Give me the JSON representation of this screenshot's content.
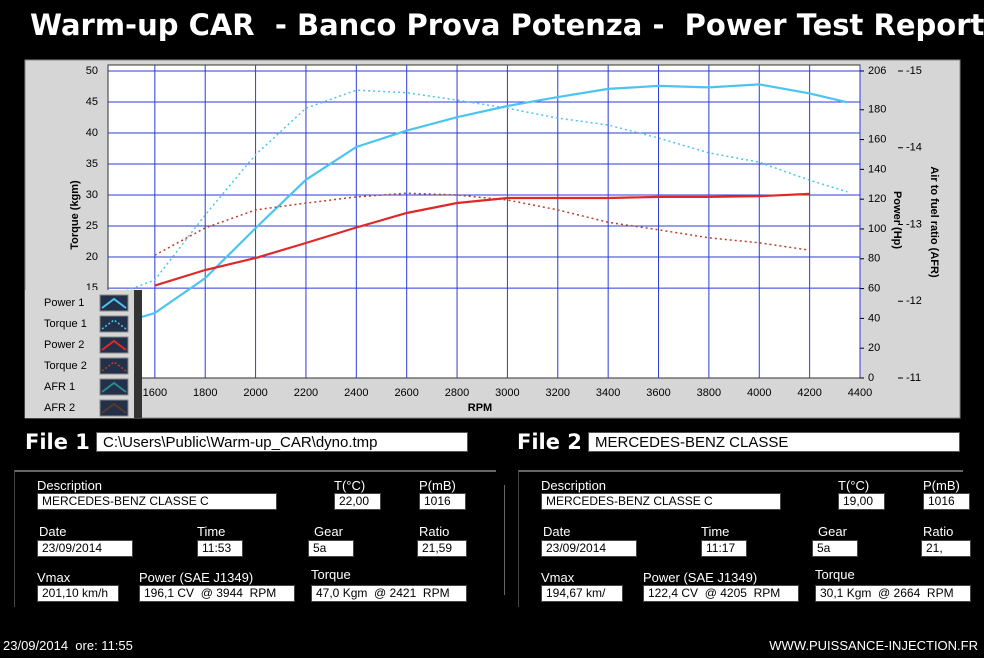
{
  "header": {
    "title": "Warm-up CAR  - Banco Prova Potenza -  Power Test Report"
  },
  "chart_data": {
    "type": "line",
    "x_label": "RPM",
    "y_label": "Torque (kgm)",
    "y2_label": "Power (Hp)",
    "y3_label": "Air to fuel ratio (AFR)",
    "x": [
      1450,
      1600,
      1800,
      2000,
      2200,
      2400,
      2600,
      2800,
      3000,
      3200,
      3400,
      3600,
      3800,
      4000,
      4200,
      4350
    ],
    "xlim": [
      1414,
      4400
    ],
    "xticks": [
      1600,
      1800,
      2000,
      2200,
      2400,
      2600,
      2800,
      3000,
      3200,
      3400,
      3600,
      3800,
      4000,
      4200,
      4400
    ],
    "ylim": [
      0.5,
      50
    ],
    "yticks": [
      15,
      20,
      25,
      30,
      35,
      40,
      45,
      50
    ],
    "y2lim": [
      0,
      206
    ],
    "y2ticks": [
      0,
      20,
      40,
      60,
      80,
      100,
      120,
      140,
      160,
      180,
      206
    ],
    "y3lim": [
      -11,
      -15
    ],
    "y3ticks": [
      -11,
      -12,
      -13,
      -14,
      -15
    ],
    "grid": true,
    "legend": "lower-left",
    "series": [
      {
        "name": "Power 1",
        "color": "#4cc4f0",
        "style": "solid",
        "axis": "y2",
        "values": [
          36,
          43.6,
          67,
          100.6,
          133,
          155,
          166,
          175,
          182.5,
          188.5,
          194,
          196,
          195,
          197,
          191,
          185
        ]
      },
      {
        "name": "Torque 1",
        "color": "#4cc4f0",
        "style": "dotted",
        "values": [
          14,
          16.3,
          26.8,
          36.5,
          44,
          46.9,
          46.5,
          45.3,
          44,
          42.4,
          41.3,
          39.2,
          36.8,
          35.3,
          32.4,
          30.5
        ]
      },
      {
        "name": "Power 2",
        "color": "#e02828",
        "style": "solid",
        "axis": "y2",
        "values": [
          null,
          62,
          72.5,
          80.5,
          90.6,
          101,
          110.7,
          117.4,
          120.8,
          120.8,
          120.8,
          121.5,
          121.5,
          122,
          123.5,
          null
        ]
      },
      {
        "name": "Torque 2",
        "color": "#b8402a",
        "style": "dotted",
        "values": [
          null,
          20.3,
          24.7,
          27.6,
          28.7,
          29.7,
          30.3,
          30,
          29.2,
          27.6,
          25.6,
          24.4,
          23.1,
          22.3,
          21.1,
          null
        ]
      },
      {
        "name": "AFR 1",
        "color": "#2a8a8a",
        "style": "solid",
        "axis": "y3",
        "values": [
          null,
          null,
          null,
          null,
          null,
          null,
          null,
          null,
          null,
          null,
          null,
          null,
          null,
          null,
          null,
          null
        ]
      },
      {
        "name": "AFR 2",
        "color": "#5a3a2a",
        "style": "solid",
        "axis": "y3",
        "values": [
          null,
          null,
          null,
          null,
          null,
          null,
          null,
          null,
          null,
          null,
          null,
          null,
          null,
          null,
          null,
          null
        ]
      }
    ]
  },
  "files": [
    {
      "label": "File 1",
      "value": "C:\\Users\\Public\\Warm-up_CAR\\dyno.tmp"
    },
    {
      "label": "File 2",
      "value": "MERCEDES-BENZ CLASSE"
    }
  ],
  "panels": [
    {
      "fields": [
        {
          "label": "Description",
          "value": "MERCEDES-BENZ CLASSE C"
        },
        {
          "label": "T(°C)",
          "value": "22,00"
        },
        {
          "label": "P(mB)",
          "value": "1016"
        },
        {
          "label": "Date",
          "value": "23/09/2014"
        },
        {
          "label": "Time",
          "value": "11:53"
        },
        {
          "label": "Gear",
          "value": "5a"
        },
        {
          "label": "Ratio",
          "value": "21,59"
        },
        {
          "label": "Vmax",
          "value": "201,10 km/h"
        },
        {
          "label": "Power (SAE J1349)",
          "value": "196,1 CV  @ 3944  RPM"
        },
        {
          "label": "Torque",
          "value": "47,0 Kgm  @ 2421  RPM"
        }
      ]
    },
    {
      "fields": [
        {
          "label": "Description",
          "value": "MERCEDES-BENZ CLASSE C"
        },
        {
          "label": "T(°C)",
          "value": "19,00"
        },
        {
          "label": "P(mB)",
          "value": "1016"
        },
        {
          "label": "Date",
          "value": "23/09/2014"
        },
        {
          "label": "Time",
          "value": "11:17"
        },
        {
          "label": "Gear",
          "value": "5a"
        },
        {
          "label": "Ratio",
          "value": "21,"
        },
        {
          "label": "Vmax",
          "value": "194,67 km/"
        },
        {
          "label": "Power (SAE J1349)",
          "value": "122,4 CV  @ 4205  RPM"
        },
        {
          "label": "Torque",
          "value": "30,1 Kgm  @ 2664  RPM"
        }
      ]
    }
  ],
  "footer": {
    "timestamp": "23/09/2014  ore: 11:55",
    "website": "WWW.PUISSANCE-INJECTION.FR"
  }
}
